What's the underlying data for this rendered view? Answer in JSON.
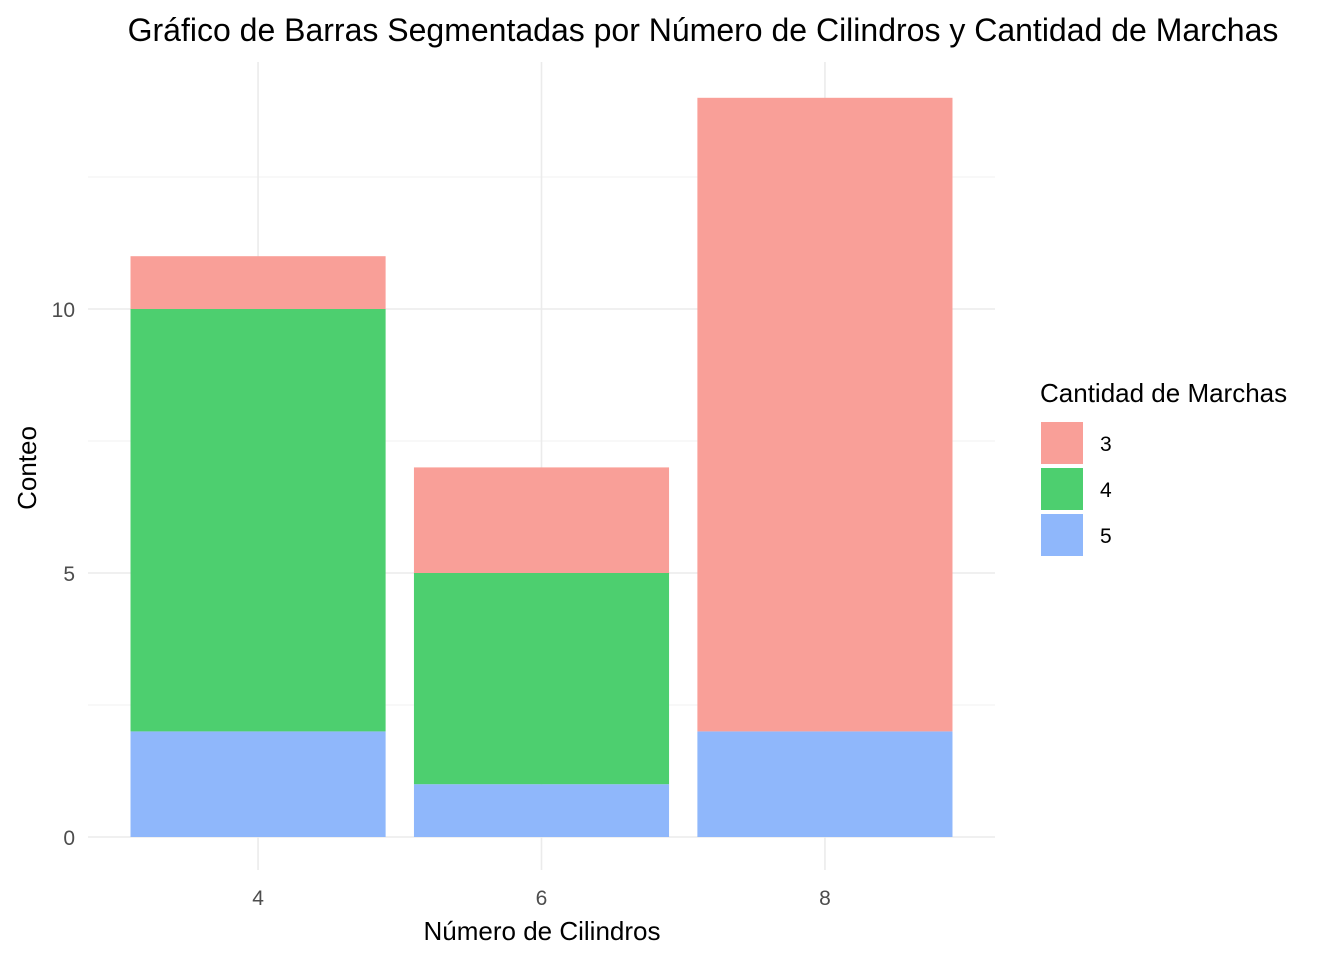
{
  "chart_data": {
    "type": "bar",
    "stacked": true,
    "title": "Gráfico de Barras Segmentadas por Número de Cilindros y Cantidad de Marchas",
    "xlabel": "Número de Cilindros",
    "ylabel": "Conteo",
    "categories": [
      "4",
      "6",
      "8"
    ],
    "y_ticks": [
      "0",
      "5",
      "10"
    ],
    "ylim": [
      0,
      14.7
    ],
    "grid": true,
    "legend_title": "Cantidad de Marchas",
    "legend_position": "right",
    "series": [
      {
        "name": "5",
        "values": [
          2,
          1,
          2
        ],
        "color": "#8fb7fb"
      },
      {
        "name": "4",
        "values": [
          8,
          4,
          0
        ],
        "color": "#4dcf6f"
      },
      {
        "name": "3",
        "values": [
          1,
          2,
          12
        ],
        "color": "#f99f98"
      }
    ],
    "legend_order": [
      "3",
      "4",
      "5"
    ]
  }
}
